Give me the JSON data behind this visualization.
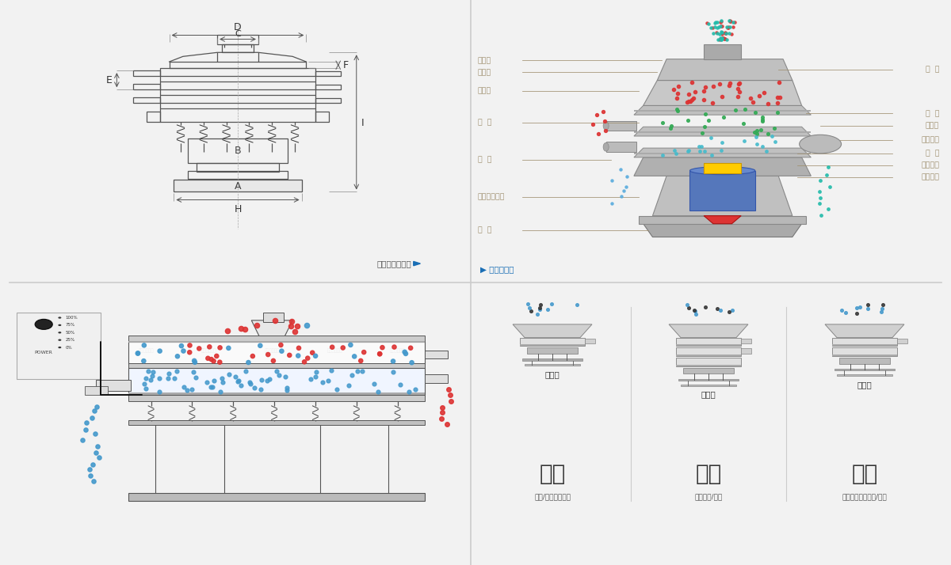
{
  "bg_color": "#ffffff",
  "panel_bg": "#f5f5f5",
  "line_color": "#555555",
  "dim_color": "#444444",
  "annotation_color": "#a09070",
  "left_labels": [
    "进料口",
    "防尘盖",
    "出料口",
    "束  环",
    "弹  簧",
    "运输固定螺栓",
    "机  座"
  ],
  "right_labels": [
    "筛  网",
    "网  架",
    "加重块",
    "上部重锤",
    "筛  盘",
    "振动电机",
    "下部重锤"
  ],
  "dim_labels": [
    "A",
    "B",
    "C",
    "D",
    "E",
    "F",
    "H",
    "I"
  ],
  "nav_left": "外形尺寸示意图",
  "nav_right": "结构示意图",
  "sections": [
    {
      "title": "分级",
      "subtitle": "颗粒/粉末准确分级",
      "label": "单层式"
    },
    {
      "title": "过滤",
      "subtitle": "去除异物/结块",
      "label": "三层式"
    },
    {
      "title": "除杂",
      "subtitle": "去除液体中的颗粒/异物",
      "label": "双层式"
    }
  ],
  "power_labels": [
    "100%",
    "75%",
    "50%",
    "25%",
    "0%"
  ],
  "power_title": "POWER",
  "red_color": "#dd3333",
  "blue_color": "#4499cc",
  "green_color": "#33aa55",
  "teal_color": "#22bbaa",
  "metal_light": "#d4d4d4",
  "metal_mid": "#b8b8b8",
  "metal_dark": "#909090"
}
